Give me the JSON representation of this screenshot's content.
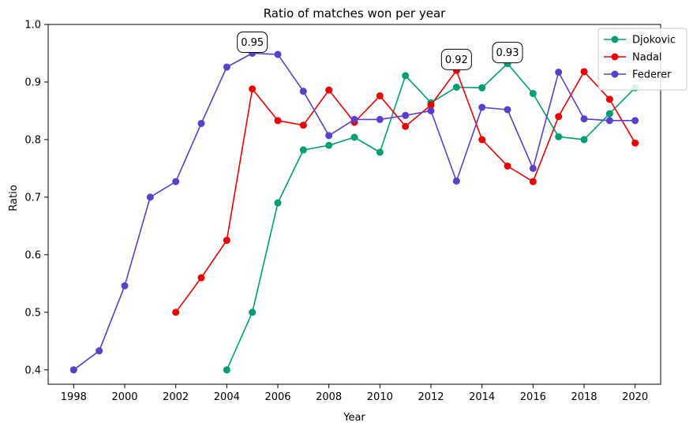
{
  "chart_data": {
    "type": "line",
    "title": "Ratio of matches won per year",
    "xlabel": "Year",
    "ylabel": "Ratio",
    "xlim": [
      1997.0,
      2021.0
    ],
    "ylim": [
      0.375,
      1.0
    ],
    "x_ticks": [
      1998,
      2000,
      2002,
      2004,
      2006,
      2008,
      2010,
      2012,
      2014,
      2016,
      2018,
      2020
    ],
    "x_tick_labels": [
      "1998",
      "2000",
      "2002",
      "2004",
      "2006",
      "2008",
      "2010",
      "2012",
      "2014",
      "2016",
      "2018",
      "2020"
    ],
    "y_ticks": [
      0.4,
      0.5,
      0.6,
      0.7,
      0.8,
      0.9,
      1.0
    ],
    "y_tick_labels": [
      "0.4",
      "0.5",
      "0.6",
      "0.7",
      "0.8",
      "0.9",
      "1.0"
    ],
    "grid": false,
    "legend": "top-right",
    "series": [
      {
        "name": "Djokovic",
        "color": "#009e73",
        "x": [
          2004,
          2005,
          2006,
          2007,
          2008,
          2009,
          2010,
          2011,
          2012,
          2013,
          2014,
          2015,
          2016,
          2017,
          2018,
          2019,
          2020
        ],
        "values": [
          0.4,
          0.5,
          0.69,
          0.782,
          0.79,
          0.804,
          0.778,
          0.911,
          0.864,
          0.891,
          0.89,
          0.932,
          0.88,
          0.805,
          0.8,
          0.845,
          0.89
        ]
      },
      {
        "name": "Nadal",
        "color": "#ee0000",
        "x": [
          2002,
          2003,
          2004,
          2005,
          2006,
          2007,
          2008,
          2009,
          2010,
          2011,
          2012,
          2013,
          2014,
          2015,
          2016,
          2017,
          2018,
          2019,
          2020
        ],
        "values": [
          0.5,
          0.56,
          0.625,
          0.888,
          0.833,
          0.825,
          0.886,
          0.83,
          0.876,
          0.823,
          0.86,
          0.92,
          0.8,
          0.754,
          0.727,
          0.84,
          0.918,
          0.87,
          0.794
        ]
      },
      {
        "name": "Federer",
        "color": "#5a3fcc",
        "x": [
          1998,
          1999,
          2000,
          2001,
          2002,
          2003,
          2004,
          2005,
          2006,
          2007,
          2008,
          2009,
          2010,
          2011,
          2012,
          2013,
          2014,
          2015,
          2016,
          2017,
          2018,
          2019,
          2020
        ],
        "values": [
          0.4,
          0.433,
          0.546,
          0.7,
          0.727,
          0.828,
          0.926,
          0.95,
          0.948,
          0.884,
          0.807,
          0.835,
          0.835,
          0.842,
          0.85,
          0.728,
          0.856,
          0.852,
          0.75,
          0.917,
          0.836,
          0.833,
          0.833
        ]
      }
    ],
    "annotations": [
      {
        "text": "0.95",
        "x": 2005,
        "y": 0.95
      },
      {
        "text": "0.92",
        "x": 2013,
        "y": 0.92
      },
      {
        "text": "0.93",
        "x": 2015,
        "y": 0.932
      }
    ]
  }
}
